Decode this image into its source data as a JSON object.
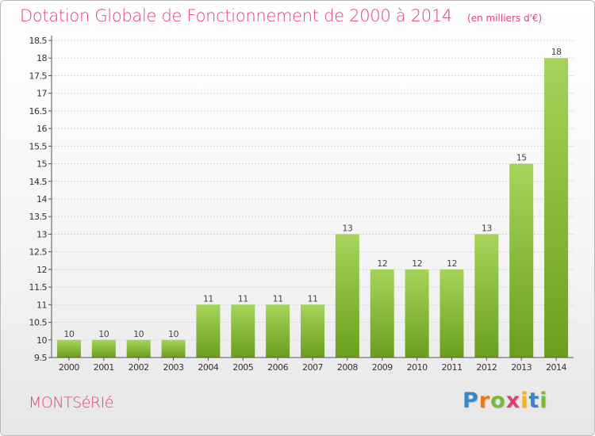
{
  "title": "Dotation Globale de Fonctionnement de 2000 à 2014",
  "unit_note": "(en milliers d'€)",
  "commune": "MONTSéRIé",
  "logo": {
    "text": "Proxiti",
    "letter_colors": [
      "#3a86c8",
      "#e87a1e",
      "#7ab83a",
      "#e0407a",
      "#f2b51c",
      "#3a86c8",
      "#7ab83a"
    ]
  },
  "colors": {
    "bar_light": "#a6d45a",
    "bar_dark": "#6b9e1e",
    "title": "#e0407a",
    "axis": "#555555"
  },
  "chart_data": {
    "type": "bar",
    "categories": [
      "2000",
      "2001",
      "2002",
      "2003",
      "2004",
      "2005",
      "2006",
      "2007",
      "2008",
      "2009",
      "2010",
      "2011",
      "2012",
      "2013",
      "2014"
    ],
    "values": [
      10,
      10,
      10,
      10,
      11,
      11,
      11,
      11,
      13,
      12,
      12,
      12,
      13,
      15,
      18
    ],
    "data_labels": [
      "10",
      "10",
      "10",
      "10",
      "11",
      "11",
      "11",
      "11",
      "13",
      "12",
      "12",
      "12",
      "13",
      "15",
      "18"
    ],
    "ylim": [
      9.5,
      18.5
    ],
    "yticks": [
      9.5,
      10,
      10.5,
      11,
      11.5,
      12,
      12.5,
      13,
      13.5,
      14,
      14.5,
      15,
      15.5,
      16,
      16.5,
      17,
      17.5,
      18,
      18.5
    ],
    "ytick_labels": [
      "9.5",
      "10",
      "10.5",
      "11",
      "11.5",
      "12",
      "12.5",
      "13",
      "13.5",
      "14",
      "14.5",
      "15",
      "15.5",
      "16",
      "16.5",
      "17",
      "17.5",
      "18",
      "18.5"
    ],
    "grid": true,
    "legend": "none",
    "xlabel": "",
    "ylabel": ""
  }
}
